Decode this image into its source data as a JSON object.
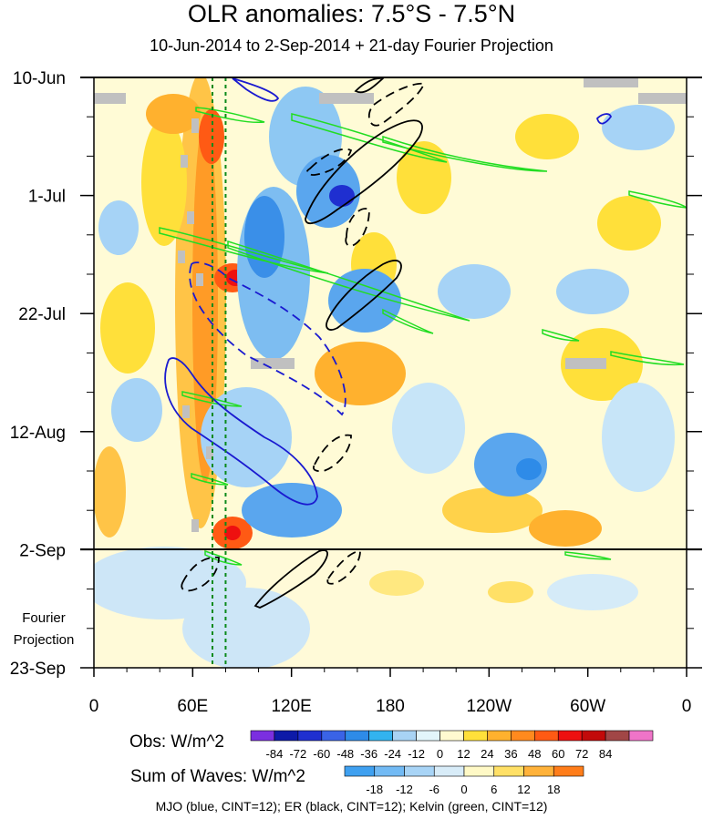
{
  "title": "OLR anomalies: 7.5°S - 7.5°N",
  "subtitle": "10-Jun-2014 to 2-Sep-2014 + 21-day Fourier Projection",
  "projection_label": [
    "Fourier",
    "Projection"
  ],
  "obs_colorbar": {
    "label": "Obs: W/m^2",
    "ticks": [
      "-84",
      "-72",
      "-60",
      "-48",
      "-36",
      "-24",
      "-12",
      "0",
      "12",
      "24",
      "36",
      "48",
      "60",
      "72",
      "84"
    ],
    "colors": [
      "#7b2fe0",
      "#0d1aa8",
      "#1f2fd0",
      "#3a63e6",
      "#2e8be8",
      "#32b3ef",
      "#a8d3f4",
      "#e2f5fb",
      "#fffad0",
      "#ffe03a",
      "#ffb12e",
      "#ff8a1e",
      "#ff5a14",
      "#ee1010",
      "#c20a0a",
      "#a14646",
      "#ef74c8"
    ]
  },
  "waves_colorbar": {
    "label": "Sum of Waves: W/m^2",
    "ticks": [
      "-18",
      "-12",
      "-6",
      "0",
      "6",
      "12",
      "18"
    ],
    "colors": [
      "#3fa0f0",
      "#72baf4",
      "#a8d4f6",
      "#d8ecf8",
      "#fff9c6",
      "#ffe066",
      "#ffb23a",
      "#ff7d1a"
    ]
  },
  "footer": "MJO (blue, CINT=12); ER (black, CINT=12); Kelvin (green, CINT=12)",
  "chart_data": {
    "type": "heatmap",
    "title": "OLR anomalies: 7.5°S - 7.5°N",
    "x_axis": {
      "ticks": [
        "0",
        "60E",
        "120E",
        "180",
        "120W",
        "60W",
        "0"
      ],
      "range_degE": [
        0,
        360
      ]
    },
    "y_axis": {
      "ticks": [
        "10-Jun",
        "1-Jul",
        "22-Jul",
        "12-Aug",
        "2-Sep",
        "23-Sep"
      ],
      "range": [
        "10-Jun-2014",
        "23-Sep-2014"
      ]
    },
    "observed_end": "2-Sep",
    "contours": [
      {
        "name": "MJO",
        "color": "blue",
        "cint": 12
      },
      {
        "name": "ER",
        "color": "black",
        "cint": 12
      },
      {
        "name": "Kelvin",
        "color": "green",
        "cint": 12
      }
    ],
    "reference_lines_lon": [
      72,
      80
    ]
  }
}
